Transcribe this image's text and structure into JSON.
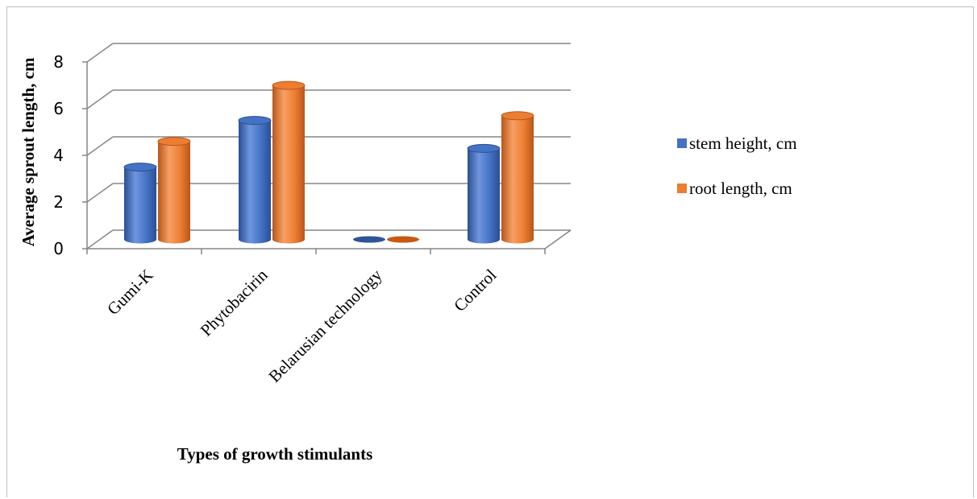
{
  "chart_data": {
    "type": "bar",
    "style": "3d-cylinder",
    "categories": [
      "Gumi-K",
      "Phytobacirin",
      "Belarusian technology",
      "Control"
    ],
    "series": [
      {
        "name": "stem height, cm",
        "values": [
          3.1,
          5.1,
          0,
          3.9
        ],
        "color": "#4472C4"
      },
      {
        "name": "root length, cm",
        "values": [
          4.2,
          6.6,
          0,
          5.3
        ],
        "color": "#ED7D31"
      }
    ],
    "title": "",
    "xlabel": "Types of growth stimulants",
    "ylabel": "Average sprout length, cm",
    "ylim": [
      0,
      8
    ],
    "yticks": [
      "0",
      "2",
      "4",
      "6",
      "8"
    ],
    "grid": true,
    "legend_position": "right"
  }
}
